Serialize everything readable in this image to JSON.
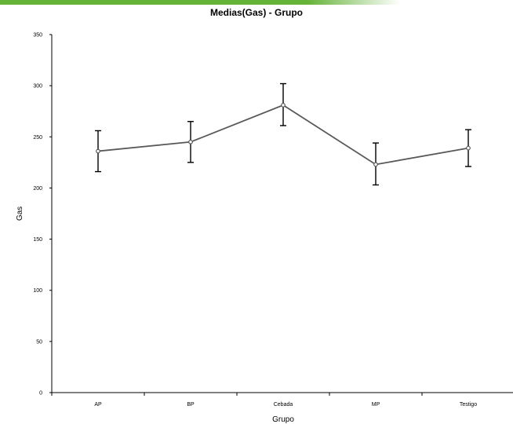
{
  "colors": {
    "band_start": "#66b33a",
    "band_end": "#ffffff",
    "line": "#595959",
    "marker_fill": "#ffffff",
    "error_bar": "#000000",
    "axis": "#000000"
  },
  "chart_data": {
    "type": "line",
    "title": "Medias(Gas) - Grupo",
    "xlabel": "Grupo",
    "ylabel": "Gas",
    "categories": [
      "AP",
      "BP",
      "Cebada",
      "MP",
      "Testigo"
    ],
    "ylim": [
      0,
      350
    ],
    "yticks": [
      0,
      50,
      100,
      150,
      200,
      250,
      300,
      350
    ],
    "grid": false,
    "legend": "none",
    "series": [
      {
        "values": [
          236,
          245,
          281,
          223,
          239
        ],
        "error_upper": [
          256,
          265,
          302,
          244,
          257
        ],
        "error_lower": [
          216,
          225,
          261,
          203,
          221
        ]
      }
    ]
  }
}
